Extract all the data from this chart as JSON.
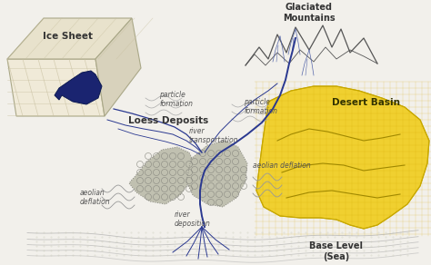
{
  "bg_color": "#f2f0eb",
  "ice_sheet_color": "#f0ead8",
  "ice_sheet_edge": "#aaa888",
  "ice_top_color": "#e8e2cc",
  "ice_right_color": "#d8d2bc",
  "glacier_color": "#1a2470",
  "desert_color": "#f0d030",
  "desert_edge": "#c8a800",
  "desert_hatch_color": "#c8a800",
  "loess_color": "#c0c0b0",
  "loess_edge": "#888880",
  "river_color": "#2a3890",
  "mountain_color": "#555555",
  "label_color": "#333333",
  "italic_color": "#555555",
  "labels": {
    "glaciated_mountains": "Glaciated\nMountains",
    "ice_sheet": "Ice Sheet",
    "desert_basin": "Desert Basin",
    "loess_deposits": "Loess Deposits",
    "base_level": "Base Level\n(Sea)",
    "particle_left": "particle\nformation",
    "particle_center": "particle\nformation",
    "river_transport": "river\ntransportation",
    "aeolian_right": "aeolian deflation",
    "aeolian_left": "aeolian\ndeflation",
    "river_deposition": "river\ndeposition"
  }
}
